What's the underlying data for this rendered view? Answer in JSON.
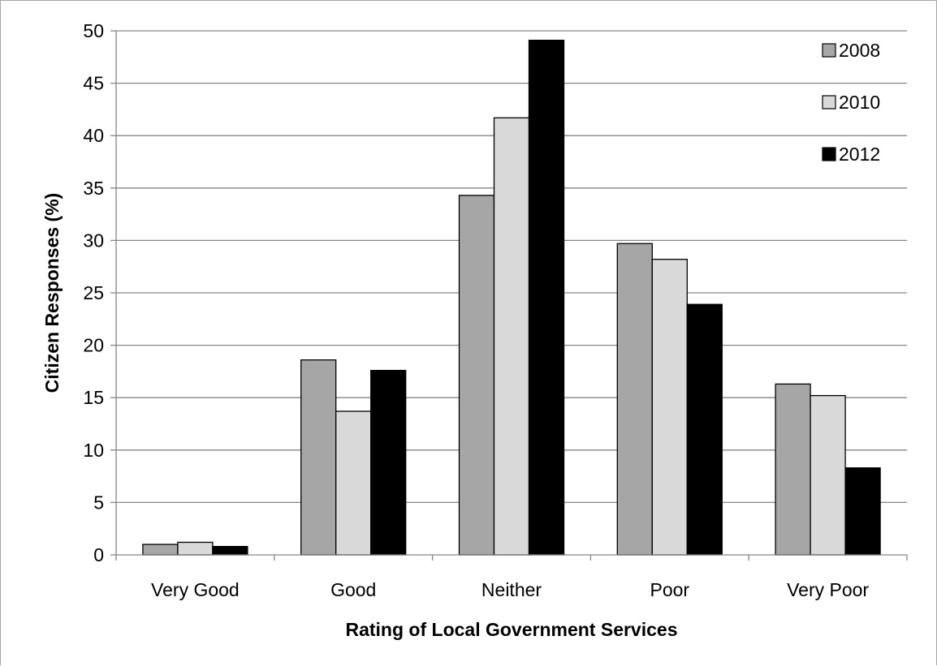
{
  "chart_data": {
    "type": "bar",
    "xlabel": "Rating of Local Government Services",
    "ylabel": "Citizen Responses (%)",
    "categories": [
      "Very Good",
      "Good",
      "Neither",
      "Poor",
      "Very Poor"
    ],
    "series": [
      {
        "name": "2008",
        "color": "#a6a6a6",
        "values": [
          1.0,
          18.6,
          34.3,
          29.7,
          16.3
        ]
      },
      {
        "name": "2010",
        "color": "#d9d9d9",
        "values": [
          1.2,
          13.7,
          41.7,
          28.2,
          15.2
        ]
      },
      {
        "name": "2012",
        "color": "#000000",
        "values": [
          0.8,
          17.6,
          49.1,
          23.9,
          8.3
        ]
      }
    ],
    "yticks": [
      "0",
      "5",
      "10",
      "15",
      "20",
      "25",
      "30",
      "35",
      "40",
      "45",
      "50"
    ],
    "ylim": [
      0,
      50
    ],
    "grid": true,
    "legend_position": "top-right"
  }
}
